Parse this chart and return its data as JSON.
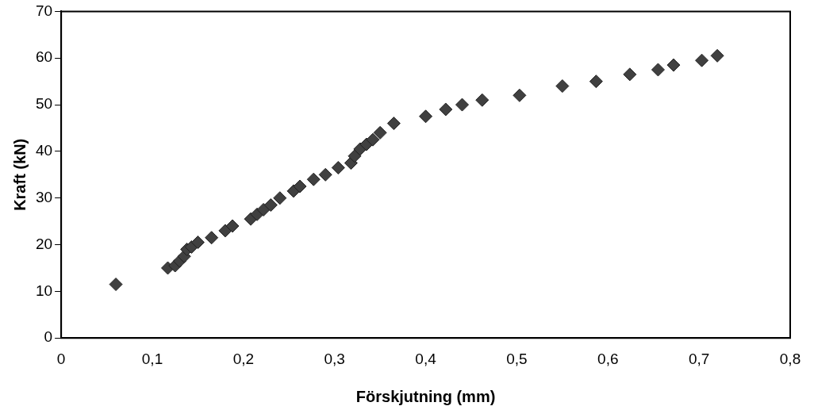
{
  "chart_data": {
    "type": "scatter",
    "xlabel": "Förskjutning (mm)",
    "ylabel": "Kraft (kN)",
    "x": [
      0.06,
      0.117,
      0.125,
      0.13,
      0.135,
      0.138,
      0.143,
      0.15,
      0.165,
      0.18,
      0.188,
      0.208,
      0.215,
      0.222,
      0.23,
      0.24,
      0.255,
      0.262,
      0.277,
      0.29,
      0.304,
      0.318,
      0.322,
      0.328,
      0.335,
      0.342,
      0.35,
      0.365,
      0.4,
      0.422,
      0.44,
      0.462,
      0.503,
      0.55,
      0.587,
      0.624,
      0.655,
      0.672,
      0.703,
      0.72
    ],
    "series": [
      {
        "color": "#404040",
        "values": [
          11.5,
          15,
          15.5,
          16.5,
          17.5,
          19,
          19.5,
          20.5,
          21.5,
          23,
          24,
          25.5,
          26.5,
          27.5,
          28.5,
          30,
          31.5,
          32.5,
          34,
          35,
          36.5,
          37.5,
          39,
          40.5,
          41.5,
          42.5,
          44,
          46,
          47.5,
          49,
          50,
          51,
          52,
          54,
          55,
          56.5,
          57.5,
          58.5,
          59.5,
          60.5
        ]
      }
    ],
    "xlim": [
      0,
      0.8
    ],
    "xticks": [
      0,
      {
        "value": 0.1,
        "label": "0,1"
      },
      {
        "value": 0.2,
        "label": "0,2"
      },
      {
        "value": 0.3,
        "label": "0,3"
      },
      {
        "value": 0.4,
        "label": "0,4"
      },
      {
        "value": 0.5,
        "label": "0,5"
      },
      {
        "value": 0.6,
        "label": "0,6"
      },
      {
        "value": 0.7,
        "label": "0,7"
      },
      {
        "value": 0.8,
        "label": "0,8"
      }
    ],
    "ylim": [
      0,
      70
    ],
    "yticks": [
      0,
      10,
      20,
      30,
      40,
      50,
      60,
      70
    ],
    "grid": false,
    "legend": false,
    "marker": "diamond"
  }
}
